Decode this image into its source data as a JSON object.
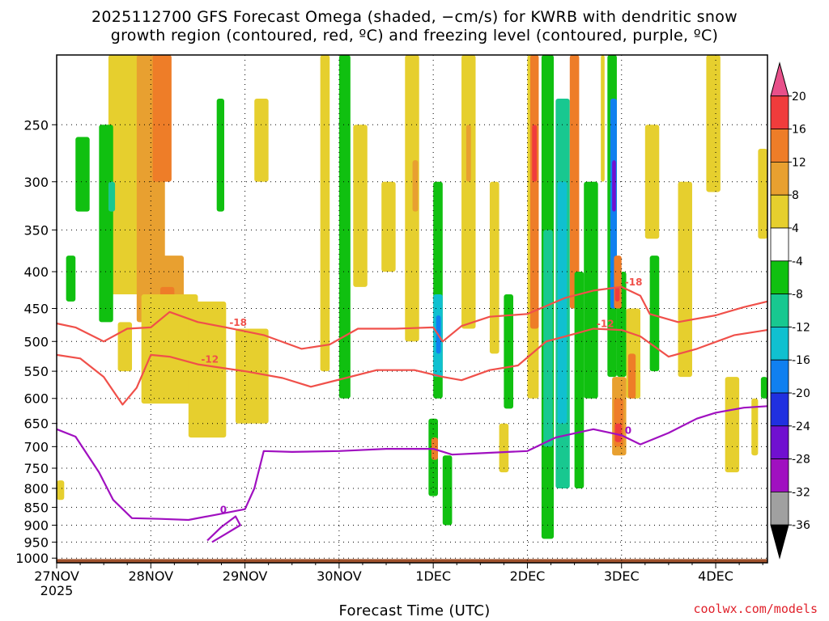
{
  "title_line1": "2025112700 GFS Forecast Omega (shaded, −cm/s) for KWRB with dendritic snow",
  "title_line2": "growth region (contoured, red, ºC) and freezing level (contoured, purple, ºC)",
  "credit": "coolwx.com/models",
  "chart_data": {
    "type": "heatmap",
    "xlabel": "Forecast Time (UTC)",
    "ylabel": "",
    "x_ticks": [
      "27NOV 2025",
      "28NOV",
      "29NOV",
      "30NOV",
      "1DEC",
      "2DEC",
      "3DEC",
      "4DEC"
    ],
    "x_range_days": [
      0,
      7.55
    ],
    "y_ticks": [
      250,
      300,
      350,
      400,
      450,
      500,
      550,
      600,
      650,
      700,
      750,
      800,
      850,
      900,
      950,
      1000
    ],
    "y_range_hPa": [
      200,
      1015
    ],
    "colorbar": {
      "levels": [
        20,
        16,
        12,
        8,
        4,
        -4,
        -8,
        -12,
        -16,
        -20,
        -24,
        -28,
        -32,
        -36
      ],
      "colors": [
        "#e8508a",
        "#f03c3c",
        "#ee7d28",
        "#e8a030",
        "#e6cf2e",
        "#ffffff",
        "#10c010",
        "#18c890",
        "#10c0d0",
        "#1080f0",
        "#2030e0",
        "#7010d0",
        "#a010c0",
        "#a0a0a0",
        "#000000"
      ]
    },
    "contours": [
      {
        "label": "-18",
        "color": "#f0504a",
        "points": [
          [
            0,
            472
          ],
          [
            0.2,
            478
          ],
          [
            0.5,
            500
          ],
          [
            0.75,
            480
          ],
          [
            1.0,
            478
          ],
          [
            1.2,
            455
          ],
          [
            1.5,
            470
          ],
          [
            1.8,
            478
          ],
          [
            2.2,
            490
          ],
          [
            2.6,
            512
          ],
          [
            2.9,
            505
          ],
          [
            3.2,
            480
          ],
          [
            3.6,
            480
          ],
          [
            4.0,
            478
          ],
          [
            4.1,
            500
          ],
          [
            4.3,
            476
          ],
          [
            4.6,
            462
          ],
          [
            5.0,
            458
          ],
          [
            5.4,
            435
          ],
          [
            5.7,
            425
          ],
          [
            6.0,
            420
          ],
          [
            6.2,
            432
          ],
          [
            6.3,
            458
          ],
          [
            6.6,
            470
          ],
          [
            7.0,
            460
          ],
          [
            7.3,
            448
          ],
          [
            7.55,
            440
          ]
        ]
      },
      {
        "label": "-12",
        "color": "#f0504a",
        "points": [
          [
            0,
            522
          ],
          [
            0.25,
            528
          ],
          [
            0.5,
            560
          ],
          [
            0.7,
            612
          ],
          [
            0.85,
            580
          ],
          [
            1.0,
            522
          ],
          [
            1.2,
            525
          ],
          [
            1.5,
            538
          ],
          [
            2.0,
            550
          ],
          [
            2.4,
            562
          ],
          [
            2.7,
            578
          ],
          [
            3.0,
            565
          ],
          [
            3.4,
            548
          ],
          [
            3.8,
            548
          ],
          [
            4.1,
            560
          ],
          [
            4.3,
            566
          ],
          [
            4.6,
            548
          ],
          [
            4.9,
            540
          ],
          [
            5.2,
            500
          ],
          [
            5.5,
            488
          ],
          [
            5.7,
            480
          ],
          [
            6.0,
            482
          ],
          [
            6.2,
            492
          ],
          [
            6.5,
            525
          ],
          [
            6.8,
            512
          ],
          [
            7.2,
            490
          ],
          [
            7.55,
            482
          ]
        ]
      },
      {
        "label": "0",
        "color": "#a010c0",
        "points": [
          [
            0,
            662
          ],
          [
            0.2,
            678
          ],
          [
            0.45,
            760
          ],
          [
            0.6,
            830
          ],
          [
            0.8,
            880
          ],
          [
            1.1,
            882
          ],
          [
            1.4,
            885
          ],
          [
            1.7,
            870
          ],
          [
            2.0,
            855
          ],
          [
            2.1,
            800
          ],
          [
            2.2,
            710
          ],
          [
            2.5,
            712
          ],
          [
            3.0,
            710
          ],
          [
            3.5,
            705
          ],
          [
            4.0,
            705
          ],
          [
            4.2,
            718
          ],
          [
            4.5,
            715
          ],
          [
            5.0,
            710
          ],
          [
            5.3,
            680
          ],
          [
            5.7,
            662
          ],
          [
            6.0,
            675
          ],
          [
            6.2,
            695
          ],
          [
            6.5,
            670
          ],
          [
            6.8,
            640
          ],
          [
            7.0,
            628
          ],
          [
            7.3,
            618
          ],
          [
            7.55,
            615
          ]
        ]
      },
      {
        "label": "",
        "color": "#a010c0",
        "points": [
          [
            1.6,
            945
          ],
          [
            1.75,
            905
          ],
          [
            1.9,
            875
          ],
          [
            1.95,
            900
          ],
          [
            1.8,
            925
          ],
          [
            1.65,
            950
          ]
        ]
      }
    ],
    "omega_cells": [
      {
        "t": [
          0.55,
          0.95
        ],
        "p": [
          200,
          430
        ],
        "v": 5
      },
      {
        "t": [
          0.85,
          1.15
        ],
        "p": [
          200,
          470
        ],
        "v": 9
      },
      {
        "t": [
          1.02,
          1.22
        ],
        "p": [
          200,
          300
        ],
        "v": 13
      },
      {
        "t": [
          1.05,
          1.35
        ],
        "p": [
          380,
          560
        ],
        "v": 9
      },
      {
        "t": [
          1.1,
          1.25
        ],
        "p": [
          420,
          540
        ],
        "v": 14
      },
      {
        "t": [
          0.9,
          1.5
        ],
        "p": [
          430,
          610
        ],
        "v": 5
      },
      {
        "t": [
          1.4,
          1.8
        ],
        "p": [
          440,
          680
        ],
        "v": 5
      },
      {
        "t": [
          1.9,
          2.25
        ],
        "p": [
          480,
          650
        ],
        "v": 5
      },
      {
        "t": [
          0.2,
          0.35
        ],
        "p": [
          260,
          330
        ],
        "v": -6
      },
      {
        "t": [
          0.45,
          0.6
        ],
        "p": [
          250,
          470
        ],
        "v": -6
      },
      {
        "t": [
          0.55,
          0.62
        ],
        "p": [
          300,
          330
        ],
        "v": -10
      },
      {
        "t": [
          0.65,
          0.8
        ],
        "p": [
          470,
          550
        ],
        "v": 5
      },
      {
        "t": [
          1.7,
          1.78
        ],
        "p": [
          230,
          330
        ],
        "v": -6
      },
      {
        "t": [
          2.1,
          2.25
        ],
        "p": [
          230,
          300
        ],
        "v": 5
      },
      {
        "t": [
          2.8,
          2.9
        ],
        "p": [
          200,
          550
        ],
        "v": 5
      },
      {
        "t": [
          3.0,
          3.12
        ],
        "p": [
          200,
          600
        ],
        "v": -6
      },
      {
        "t": [
          3.15,
          3.3
        ],
        "p": [
          250,
          420
        ],
        "v": 5
      },
      {
        "t": [
          3.45,
          3.6
        ],
        "p": [
          300,
          400
        ],
        "v": 5
      },
      {
        "t": [
          3.7,
          3.85
        ],
        "p": [
          200,
          500
        ],
        "v": 5
      },
      {
        "t": [
          3.78,
          3.84
        ],
        "p": [
          280,
          330
        ],
        "v": 9
      },
      {
        "t": [
          4.0,
          4.1
        ],
        "p": [
          300,
          600
        ],
        "v": -6
      },
      {
        "t": [
          4.0,
          4.1
        ],
        "p": [
          430,
          560
        ],
        "v": -14
      },
      {
        "t": [
          4.03,
          4.08
        ],
        "p": [
          460,
          520
        ],
        "v": -20
      },
      {
        "t": [
          3.95,
          4.05
        ],
        "p": [
          640,
          820
        ],
        "v": -6
      },
      {
        "t": [
          3.98,
          4.05
        ],
        "p": [
          680,
          730
        ],
        "v": 14
      },
      {
        "t": [
          4.1,
          4.2
        ],
        "p": [
          720,
          900
        ],
        "v": -6
      },
      {
        "t": [
          4.3,
          4.45
        ],
        "p": [
          200,
          480
        ],
        "v": 5
      },
      {
        "t": [
          4.35,
          4.4
        ],
        "p": [
          250,
          300
        ],
        "v": 9
      },
      {
        "t": [
          4.6,
          4.7
        ],
        "p": [
          300,
          520
        ],
        "v": 5
      },
      {
        "t": [
          4.75,
          4.85
        ],
        "p": [
          430,
          620
        ],
        "v": -6
      },
      {
        "t": [
          4.7,
          4.8
        ],
        "p": [
          650,
          760
        ],
        "v": 5
      },
      {
        "t": [
          5.0,
          5.12
        ],
        "p": [
          200,
          600
        ],
        "v": 5
      },
      {
        "t": [
          5.03,
          5.12
        ],
        "p": [
          200,
          480
        ],
        "v": 13
      },
      {
        "t": [
          5.05,
          5.1
        ],
        "p": [
          250,
          300
        ],
        "v": 18
      },
      {
        "t": [
          5.15,
          5.28
        ],
        "p": [
          200,
          940
        ],
        "v": -6
      },
      {
        "t": [
          5.17,
          5.27
        ],
        "p": [
          350,
          700
        ],
        "v": -12
      },
      {
        "t": [
          5.3,
          5.45
        ],
        "p": [
          230,
          800
        ],
        "v": -10
      },
      {
        "t": [
          5.32,
          5.42
        ],
        "p": [
          300,
          650
        ],
        "v": -14
      },
      {
        "t": [
          5.45,
          5.55
        ],
        "p": [
          200,
          450
        ],
        "v": 13
      },
      {
        "t": [
          5.5,
          5.6
        ],
        "p": [
          400,
          800
        ],
        "v": -6
      },
      {
        "t": [
          5.6,
          5.75
        ],
        "p": [
          300,
          600
        ],
        "v": -6
      },
      {
        "t": [
          5.78,
          5.82
        ],
        "p": [
          200,
          300
        ],
        "v": 5
      },
      {
        "t": [
          5.85,
          5.95
        ],
        "p": [
          200,
          560
        ],
        "v": -6
      },
      {
        "t": [
          5.88,
          5.95
        ],
        "p": [
          230,
          450
        ],
        "v": -18
      },
      {
        "t": [
          5.9,
          5.94
        ],
        "p": [
          280,
          330
        ],
        "v": -28
      },
      {
        "t": [
          5.95,
          6.05
        ],
        "p": [
          400,
          560
        ],
        "v": -6
      },
      {
        "t": [
          5.92,
          6.0
        ],
        "p": [
          380,
          450
        ],
        "v": 13
      },
      {
        "t": [
          5.93,
          5.98
        ],
        "p": [
          420,
          440
        ],
        "v": 18
      },
      {
        "t": [
          5.9,
          6.05
        ],
        "p": [
          560,
          720
        ],
        "v": 9
      },
      {
        "t": [
          5.92,
          6.02
        ],
        "p": [
          600,
          700
        ],
        "v": 14
      },
      {
        "t": [
          5.93,
          6.0
        ],
        "p": [
          650,
          690
        ],
        "v": 18
      },
      {
        "t": [
          6.05,
          6.2
        ],
        "p": [
          450,
          600
        ],
        "v": 5
      },
      {
        "t": [
          6.07,
          6.15
        ],
        "p": [
          520,
          600
        ],
        "v": 14
      },
      {
        "t": [
          6.25,
          6.4
        ],
        "p": [
          250,
          360
        ],
        "v": 5
      },
      {
        "t": [
          6.3,
          6.4
        ],
        "p": [
          380,
          550
        ],
        "v": -6
      },
      {
        "t": [
          6.6,
          6.75
        ],
        "p": [
          300,
          560
        ],
        "v": 5
      },
      {
        "t": [
          6.9,
          7.05
        ],
        "p": [
          200,
          310
        ],
        "v": 5
      },
      {
        "t": [
          7.1,
          7.25
        ],
        "p": [
          560,
          760
        ],
        "v": 5
      },
      {
        "t": [
          7.38,
          7.45
        ],
        "p": [
          600,
          720
        ],
        "v": 5
      },
      {
        "t": [
          7.45,
          7.55
        ],
        "p": [
          270,
          360
        ],
        "v": 5
      },
      {
        "t": [
          7.48,
          7.55
        ],
        "p": [
          560,
          600
        ],
        "v": -6
      },
      {
        "t": [
          0.1,
          0.2
        ],
        "p": [
          380,
          440
        ],
        "v": -6
      },
      {
        "t": [
          0.0,
          0.08
        ],
        "p": [
          780,
          830
        ],
        "v": 5
      }
    ],
    "terrain": {
      "color": "#a0522d",
      "top_hPa": 1003
    }
  }
}
